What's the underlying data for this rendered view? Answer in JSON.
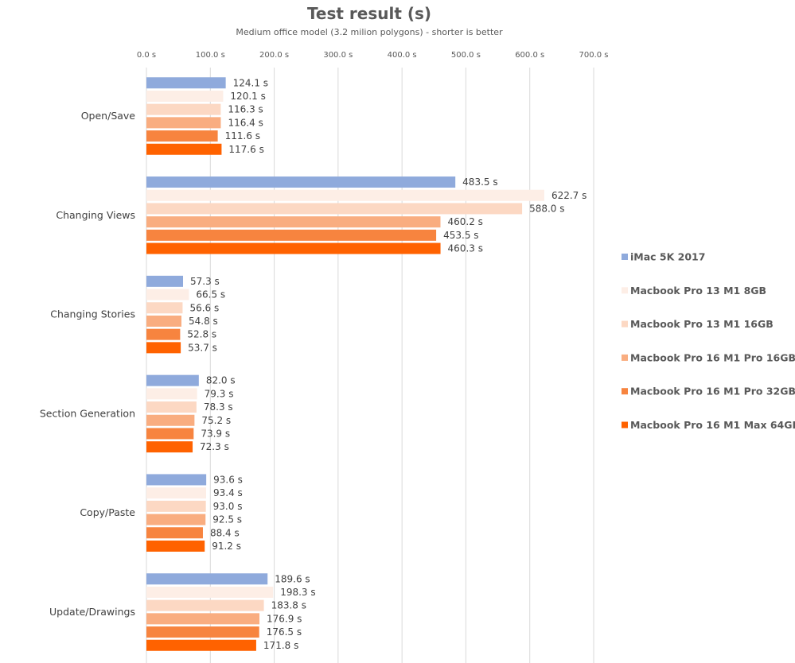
{
  "chart_data": {
    "type": "bar",
    "orientation": "horizontal",
    "title": "Test result (s)",
    "subtitle": "Medium office model (3.2 milion polygons) - shorter is better",
    "xlabel": "",
    "ylabel": "",
    "xlim": [
      0,
      700
    ],
    "x_ticks": [
      "0.0 s",
      "100.0 s",
      "200.0 s",
      "300.0 s",
      "400.0 s",
      "500.0 s",
      "600.0 s",
      "700.0 s"
    ],
    "grid": true,
    "legend_position": "right",
    "categories": [
      "Open/Save",
      "Changing Views",
      "Changing Stories",
      "Section Generation",
      "Copy/Paste",
      "Update/Drawings"
    ],
    "series": [
      {
        "name": "iMac 5K 2017",
        "color": "#8faadc",
        "values": [
          124.1,
          483.5,
          57.3,
          82.0,
          93.6,
          189.6
        ]
      },
      {
        "name": "Macbook Pro 13 M1 8GB",
        "color": "#fdeee6",
        "values": [
          120.1,
          622.7,
          66.5,
          79.3,
          93.4,
          198.3
        ]
      },
      {
        "name": "Macbook Pro 13 M1 16GB",
        "color": "#fcd8c3",
        "values": [
          116.3,
          588.0,
          56.6,
          78.3,
          93.0,
          183.8
        ]
      },
      {
        "name": "Macbook Pro 16 M1 Pro 16GB",
        "color": "#f9ad80",
        "values": [
          116.4,
          460.2,
          54.8,
          75.2,
          92.5,
          176.9
        ]
      },
      {
        "name": "Macbook Pro 16 M1 Pro 32GB",
        "color": "#f7843f",
        "values": [
          111.6,
          453.5,
          52.8,
          73.9,
          88.4,
          176.5
        ]
      },
      {
        "name": "Macbook Pro 16 M1 Max 64GB",
        "color": "#ff6200",
        "values": [
          117.6,
          460.3,
          53.7,
          72.3,
          91.2,
          171.8
        ]
      }
    ],
    "unit_suffix": " s"
  }
}
